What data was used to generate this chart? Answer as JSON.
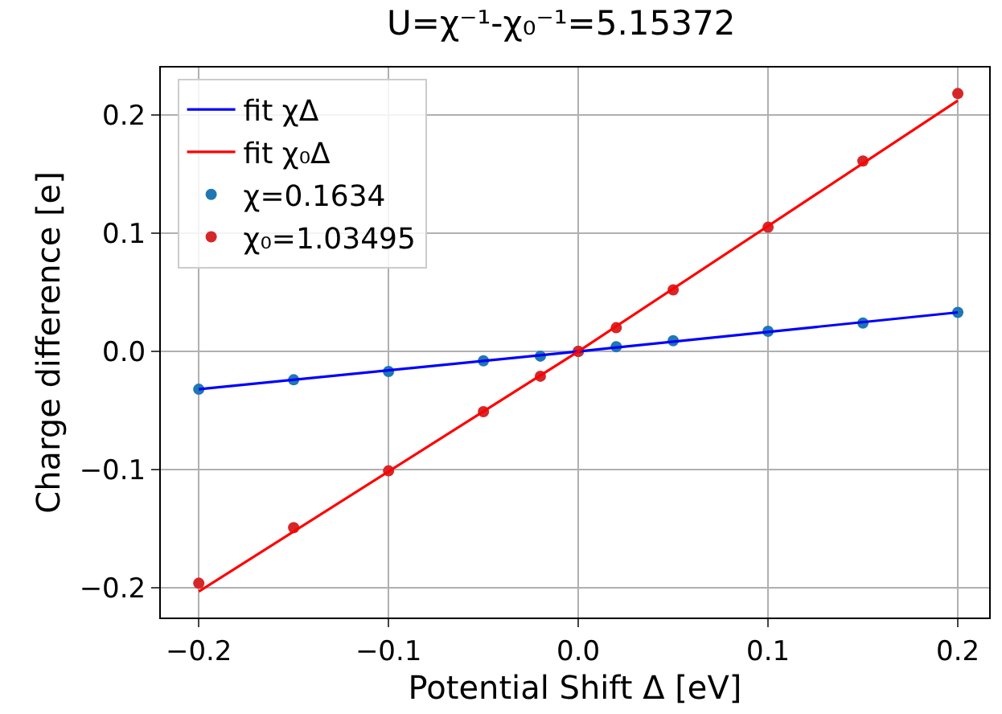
{
  "chart_data": {
    "type": "scatter",
    "title": "U=χ⁻¹-χ₀⁻¹=5.15372",
    "xlabel": "Potential Shift Δ [eV]",
    "ylabel": "Charge difference [e]",
    "x": [
      -0.2,
      -0.15,
      -0.1,
      -0.05,
      -0.02,
      0,
      0.02,
      0.05,
      0.1,
      0.15,
      0.2
    ],
    "series": [
      {
        "name": "fit χΔ",
        "type": "line",
        "color": "#0000ff",
        "x": [
          -0.2,
          0,
          0.2
        ],
        "values": [
          -0.032,
          0,
          0.033
        ],
        "marker": "none"
      },
      {
        "name": "fit χ₀Δ",
        "type": "line",
        "color": "#ff0000",
        "x": [
          -0.2,
          0,
          0.2
        ],
        "values": [
          -0.203,
          0,
          0.212
        ],
        "marker": "none"
      },
      {
        "name": "χ=0.1634",
        "color": "#1f77b4",
        "values": [
          -0.032,
          -0.024,
          -0.017,
          -0.008,
          -0.004,
          0,
          0.004,
          0.009,
          0.017,
          0.024,
          0.033
        ]
      },
      {
        "name": "χ₀=1.03495",
        "color": "#d62728",
        "values": [
          -0.196,
          -0.149,
          -0.101,
          -0.051,
          -0.021,
          0,
          0.02,
          0.052,
          0.105,
          0.161,
          0.218
        ]
      }
    ],
    "xlim": [
      -0.22,
      0.2165
    ],
    "xticks": [
      {
        "value": -0.2,
        "label": "−0.2"
      },
      {
        "value": -0.1,
        "label": "−0.1"
      },
      {
        "value": 0,
        "label": "0.0"
      },
      0.1,
      0.2
    ],
    "ylim": [
      -0.225,
      0.24
    ],
    "yticks": [
      {
        "value": -0.2,
        "label": "−0.2"
      },
      {
        "value": -0.1,
        "label": "−0.1"
      },
      {
        "value": 0,
        "label": "0.0"
      },
      0.1,
      0.2
    ],
    "grid": true,
    "legend": "top left",
    "marker": "circle"
  }
}
